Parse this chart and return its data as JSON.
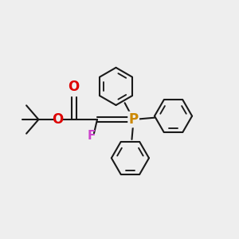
{
  "bg_color": "#eeeeee",
  "line_color": "#1a1a1a",
  "line_width": 1.5,
  "P_color": "#cc8800",
  "O_color": "#dd0000",
  "F_color": "#cc44cc",
  "figsize": [
    3.0,
    3.0
  ],
  "dpi": 100,
  "xlim": [
    0,
    10
  ],
  "ylim": [
    0,
    10
  ]
}
